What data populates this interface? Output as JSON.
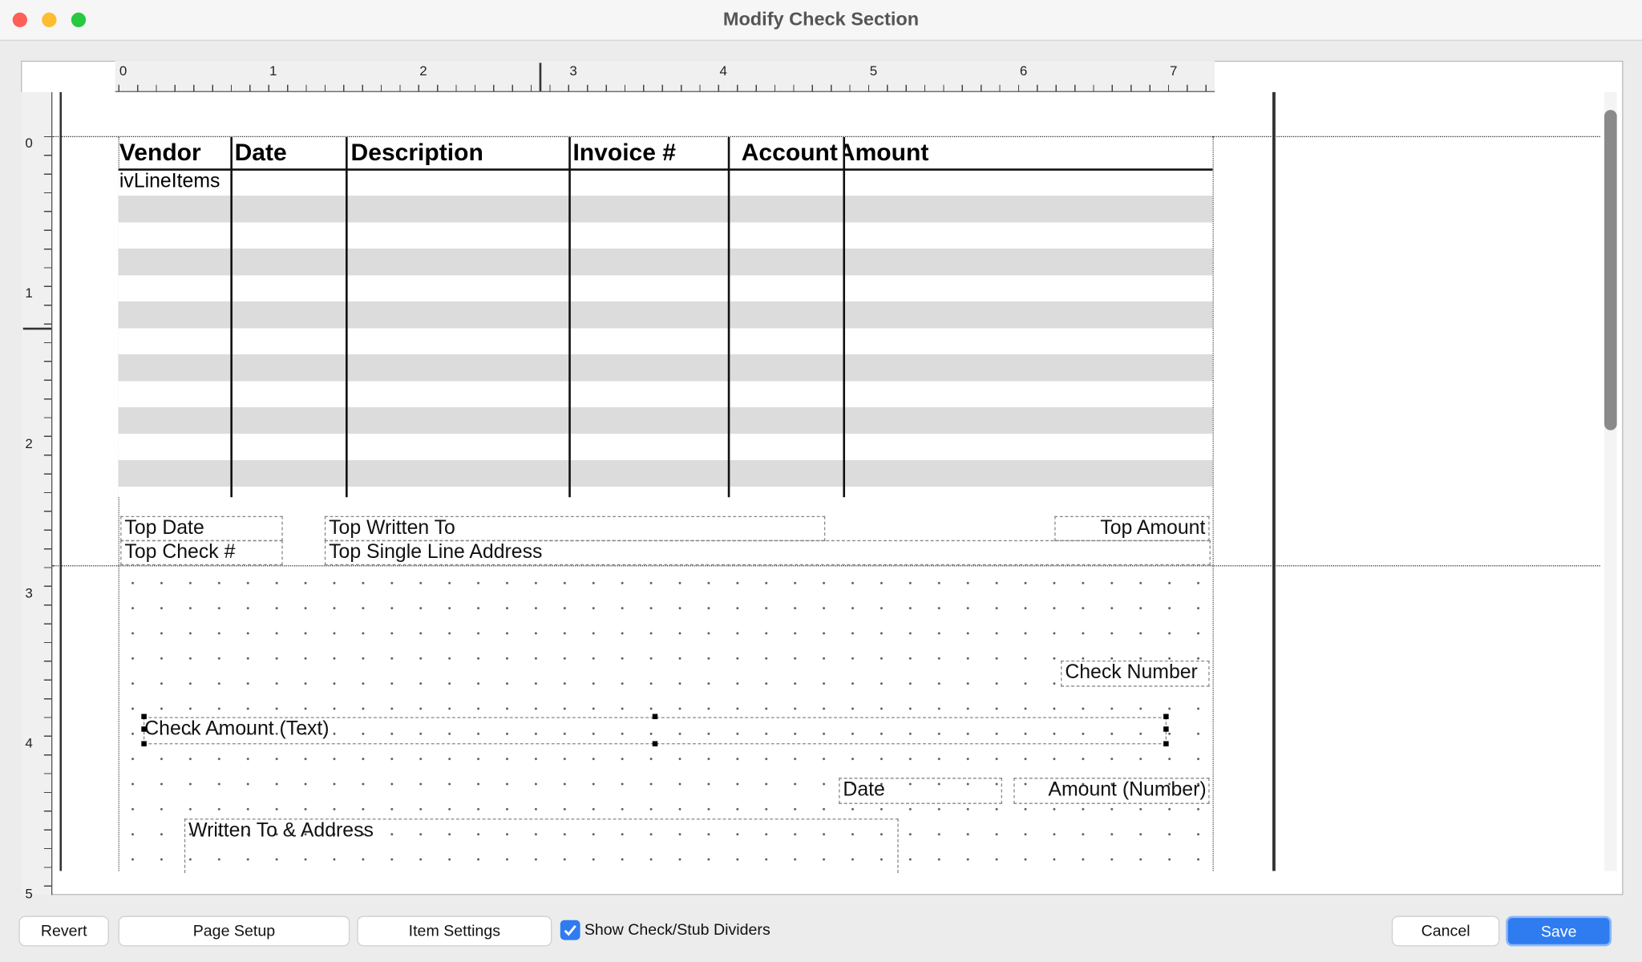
{
  "window": {
    "title": "Modify Check Section"
  },
  "ruler": {
    "horizontal": [
      "0",
      "1",
      "2",
      "3",
      "4",
      "5",
      "6",
      "7"
    ],
    "vertical": [
      "0",
      "1",
      "2",
      "3",
      "4",
      "5"
    ]
  },
  "table": {
    "headers": [
      "Vendor",
      "Date",
      "Description",
      "Invoice #",
      "Account",
      "Amount"
    ],
    "first_cell": "ivLineItems"
  },
  "fields": [
    "Top Date",
    "Top Written To",
    "Top Amount",
    "Top Check #",
    "Top Single Line Address",
    "Check Number",
    "Check Amount (Text)",
    "Date",
    "Amount (Number)",
    "Written To & Address"
  ],
  "buttons": {
    "revert": "Revert",
    "page_setup": "Page Setup",
    "item_settings": "Item Settings",
    "cancel": "Cancel",
    "save": "Save"
  },
  "checkbox": {
    "label": "Show Check/Stub Dividers",
    "checked": true
  }
}
